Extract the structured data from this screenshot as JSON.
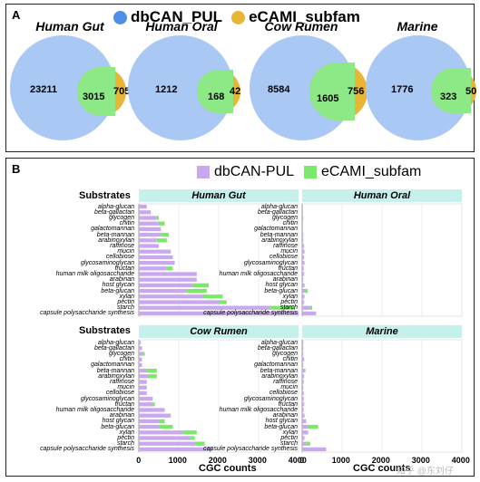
{
  "panelA": {
    "label": "A",
    "legend": [
      {
        "name": "dbCAN_PUL",
        "color": "#4f8fe8"
      },
      {
        "name": "eCAMI_subfam",
        "color": "#e8b534"
      }
    ],
    "venns": [
      {
        "title": "Human Gut",
        "only_pul": "23211",
        "overlap": "3015",
        "only_ecami": "705"
      },
      {
        "title": "Human Oral",
        "only_pul": "1212",
        "overlap": "168",
        "only_ecami": "42"
      },
      {
        "title": "Cow Rumen",
        "only_pul": "8584",
        "overlap": "1605",
        "only_ecami": "756"
      },
      {
        "title": "Marine",
        "only_pul": "1776",
        "overlap": "323",
        "only_ecami": "50"
      }
    ]
  },
  "panelB": {
    "label": "B",
    "substrates_header": "Substrates",
    "xlabel": "CGC counts",
    "xticks": [
      "0",
      "1000",
      "2000",
      "3000",
      "4000"
    ],
    "watermark": "知乎 @东刘仔"
  },
  "chart_data": {
    "type": "bar",
    "orientation": "horizontal",
    "stacked": true,
    "xlabel": "CGC counts",
    "xlim": [
      0,
      4000
    ],
    "colors": {
      "dbCAN-PUL": "#c9a8f0",
      "eCAMI_subfam": "#7be86a"
    },
    "legend": [
      "dbCAN-PUL",
      "eCAMI_subfam"
    ],
    "facets": [
      {
        "title": "Human Gut",
        "categories": [
          "alpha-glucan",
          "beta-gallactan",
          "glycogen",
          "chitin",
          "galactomannan",
          "beta-mannan",
          "arabinoxylan",
          "raffinose",
          "mucin",
          "cellobiose",
          "glycosaminoglycan",
          "fructan",
          "human milk oligosaccharide",
          "arabinan",
          "host glycan",
          "beta-glucan",
          "xylan",
          "pectin",
          "starch",
          "capsule polysaccharide synthesis"
        ],
        "series": [
          {
            "name": "dbCAN-PUL",
            "values": [
              200,
              300,
              450,
              500,
              550,
              550,
              450,
              500,
              800,
              850,
              900,
              700,
              1450,
              1450,
              1350,
              1200,
              1600,
              2000,
              3300,
              4000
            ]
          },
          {
            "name": "eCAMI_subfam",
            "values": [
              0,
              0,
              50,
              150,
              0,
              200,
              250,
              0,
              0,
              0,
              0,
              150,
              0,
              0,
              400,
              500,
              500,
              200,
              600,
              0
            ]
          }
        ]
      },
      {
        "title": "Human Oral",
        "categories": [
          "alpha-glucan",
          "beta-gallactan",
          "glycogen",
          "chitin",
          "galactomannan",
          "beta-mannan",
          "arabinoxylan",
          "raffinose",
          "mucin",
          "cellobiose",
          "glycosaminoglycan",
          "fructan",
          "human milk oligosaccharide",
          "arabinan",
          "host glycan",
          "beta-glucan",
          "xylan",
          "pectin",
          "starch",
          "capsule polysaccharide synthesis"
        ],
        "series": [
          {
            "name": "dbCAN-PUL",
            "values": [
              20,
              20,
              30,
              20,
              20,
              30,
              30,
              50,
              60,
              50,
              60,
              40,
              50,
              30,
              60,
              80,
              60,
              50,
              200,
              350
            ]
          },
          {
            "name": "eCAMI_subfam",
            "values": [
              0,
              0,
              0,
              0,
              0,
              0,
              0,
              0,
              0,
              0,
              0,
              0,
              0,
              0,
              0,
              60,
              0,
              0,
              50,
              0
            ]
          }
        ]
      },
      {
        "title": "Cow Rumen",
        "categories": [
          "alpha-glucan",
          "beta-gallactan",
          "glycogen",
          "chitin",
          "galactomannan",
          "beta-mannan",
          "arabinoxylan",
          "raffinose",
          "mucin",
          "cellobiose",
          "glycosaminoglycan",
          "fructan",
          "human milk oligosaccharide",
          "arabinan",
          "host glycan",
          "beta-glucan",
          "xylan",
          "pectin",
          "starch",
          "capsule polysaccharide synthesis"
        ],
        "series": [
          {
            "name": "dbCAN-PUL",
            "values": [
              50,
              80,
              100,
              80,
              80,
              200,
              250,
              200,
              200,
              200,
              350,
              350,
              650,
              800,
              500,
              500,
              1100,
              1300,
              1400,
              1850
            ]
          },
          {
            "name": "eCAMI_subfam",
            "values": [
              0,
              0,
              50,
              0,
              0,
              250,
              200,
              0,
              0,
              0,
              0,
              50,
              0,
              0,
              150,
              350,
              350,
              100,
              250,
              0
            ]
          }
        ]
      },
      {
        "title": "Marine",
        "categories": [
          "alpha-glucan",
          "beta-gallactan",
          "glycogen",
          "chitin",
          "galactomannan",
          "beta-mannan",
          "arabinoxylan",
          "raffinose",
          "mucin",
          "cellobiose",
          "glycosaminoglycan",
          "fructan",
          "human milk oligosaccharide",
          "arabinan",
          "host glycan",
          "beta-glucan",
          "xylan",
          "pectin",
          "starch",
          "capsule polysaccharide synthesis"
        ],
        "series": [
          {
            "name": "dbCAN-PUL",
            "values": [
              30,
              30,
              30,
              50,
              30,
              80,
              50,
              40,
              30,
              40,
              40,
              50,
              40,
              60,
              100,
              150,
              150,
              60,
              100,
              600
            ]
          },
          {
            "name": "eCAMI_subfam",
            "values": [
              0,
              0,
              0,
              0,
              0,
              0,
              0,
              0,
              0,
              0,
              0,
              0,
              0,
              0,
              0,
              250,
              0,
              0,
              100,
              0
            ]
          }
        ]
      }
    ]
  }
}
